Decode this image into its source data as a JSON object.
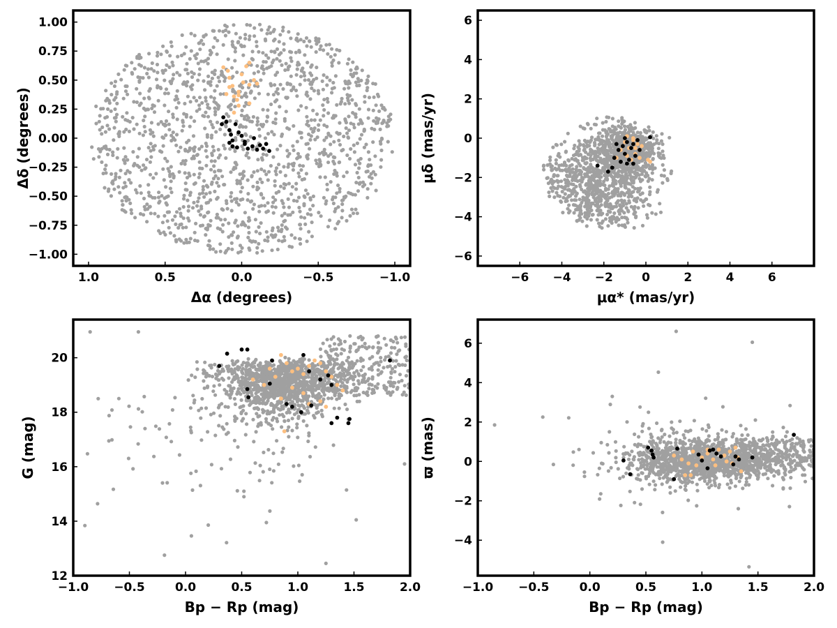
{
  "chart_data": [
    {
      "type": "scatter",
      "xlabel": "Δα (degrees)",
      "ylabel": "Δδ (degrees)",
      "xlim": [
        1.1,
        -1.1
      ],
      "ylim": [
        -1.1,
        1.1
      ],
      "x_ticks": [
        1.0,
        0.5,
        0.0,
        -0.5,
        -1.0
      ],
      "x_tick_labels": [
        "1.0",
        "0.5",
        "0.0",
        "−0.5",
        "−1.0"
      ],
      "y_ticks": [
        1.0,
        0.75,
        0.5,
        0.25,
        0.0,
        -0.25,
        -0.5,
        -0.75,
        -1.0
      ],
      "y_tick_labels": [
        "1.00",
        "0.75",
        "0.50",
        "0.25",
        "0.00",
        "−0.25",
        "−0.50",
        "−0.75",
        "−1.00"
      ],
      "series": [
        {
          "role": "field",
          "color": "#a0a0a0",
          "distribution": "uniform-disk",
          "center": [
            0.0,
            0.0
          ],
          "radius": 1.0,
          "count": 1500
        },
        {
          "role": "members-orange",
          "color": "#fdbf80",
          "points": [
            [
              0.12,
              0.61
            ],
            [
              0.09,
              0.58
            ],
            [
              0.08,
              0.52
            ],
            [
              0.06,
              0.45
            ],
            [
              0.03,
              0.33
            ],
            [
              0.05,
              0.22
            ],
            [
              0.02,
              0.4
            ],
            [
              0.02,
              0.28
            ],
            [
              -0.05,
              0.46
            ],
            [
              -0.08,
              0.5
            ],
            [
              -0.1,
              0.47
            ],
            [
              -0.05,
              0.3
            ],
            [
              0.02,
              0.37
            ],
            [
              0.05,
              0.36
            ],
            [
              0.0,
              0.55
            ],
            [
              -0.05,
              0.65
            ],
            [
              -0.03,
              0.62
            ],
            [
              -0.01,
              0.48
            ],
            [
              0.1,
              0.38
            ],
            [
              0.08,
              0.44
            ]
          ]
        },
        {
          "role": "members-black",
          "color": "#000000",
          "points": [
            [
              0.12,
              0.18
            ],
            [
              0.1,
              0.14
            ],
            [
              0.13,
              0.12
            ],
            [
              0.08,
              0.07
            ],
            [
              0.07,
              0.03
            ],
            [
              0.04,
              0.12
            ],
            [
              0.02,
              0.05
            ],
            [
              0.06,
              -0.02
            ],
            [
              0.08,
              -0.04
            ],
            [
              0.06,
              -0.07
            ],
            [
              0.03,
              -0.08
            ],
            [
              -0.02,
              -0.05
            ],
            [
              -0.04,
              -0.09
            ],
            [
              -0.07,
              -0.07
            ],
            [
              -0.1,
              -0.1
            ],
            [
              -0.14,
              -0.09
            ],
            [
              -0.18,
              -0.11
            ],
            [
              -0.16,
              -0.05
            ],
            [
              -0.08,
              0.0
            ],
            [
              -0.02,
              -0.03
            ],
            [
              0.0,
              0.02
            ],
            [
              -0.12,
              -0.06
            ]
          ]
        }
      ]
    },
    {
      "type": "scatter",
      "xlabel": "μα* (mas/yr)",
      "ylabel": "μδ (mas/yr)",
      "xlim": [
        -8,
        8
      ],
      "ylim": [
        -6.5,
        6.5
      ],
      "x_ticks": [
        -6,
        -4,
        -2,
        0,
        2,
        4,
        6
      ],
      "x_tick_labels": [
        "−6",
        "−4",
        "−2",
        "0",
        "2",
        "4",
        "6"
      ],
      "y_ticks": [
        6,
        4,
        2,
        0,
        -2,
        -4,
        -6
      ],
      "y_tick_labels": [
        "6",
        "4",
        "2",
        "0",
        "−2",
        "−4",
        "−6"
      ],
      "series": [
        {
          "role": "field",
          "color": "#a0a0a0",
          "distribution": "clustered-ellipse",
          "center": [
            -1.5,
            -1.8
          ],
          "extent": [
            3.4,
            2.9
          ],
          "count": 1500
        },
        {
          "role": "members-orange",
          "color": "#fdbf80",
          "points": [
            [
              -1.0,
              -0.2
            ],
            [
              -0.8,
              -0.5
            ],
            [
              -0.6,
              -0.1
            ],
            [
              -0.5,
              -0.8
            ],
            [
              -0.4,
              -0.3
            ],
            [
              -0.3,
              -0.6
            ],
            [
              -1.2,
              -0.6
            ],
            [
              -1.4,
              -1.0
            ],
            [
              -0.9,
              -0.9
            ],
            [
              -0.7,
              -1.1
            ],
            [
              -0.2,
              -0.4
            ],
            [
              0.1,
              -1.1
            ],
            [
              0.2,
              -1.2
            ],
            [
              -0.6,
              0.0
            ],
            [
              -1.1,
              -0.4
            ],
            [
              -0.5,
              -0.5
            ],
            [
              -0.3,
              -1.0
            ],
            [
              -0.9,
              0.1
            ]
          ]
        },
        {
          "role": "members-black",
          "color": "#000000",
          "points": [
            [
              -2.3,
              -1.4
            ],
            [
              -1.8,
              -1.7
            ],
            [
              -1.6,
              -1.5
            ],
            [
              -1.5,
              -1.0
            ],
            [
              -1.3,
              -0.6
            ],
            [
              -1.1,
              -0.4
            ],
            [
              -1.0,
              -0.8
            ],
            [
              -0.9,
              -0.2
            ],
            [
              -0.8,
              -1.1
            ],
            [
              -0.7,
              -0.5
            ],
            [
              -0.6,
              -1.3
            ],
            [
              -0.5,
              -0.9
            ],
            [
              -0.4,
              -0.1
            ],
            [
              -0.3,
              -0.6
            ],
            [
              0.2,
              0.05
            ],
            [
              -1.2,
              -1.2
            ],
            [
              -0.6,
              -0.3
            ],
            [
              -0.9,
              -1.3
            ],
            [
              -1.4,
              -0.3
            ],
            [
              -1.0,
              0.0
            ]
          ]
        }
      ]
    },
    {
      "type": "scatter",
      "xlabel": "Bp − Rp (mag)",
      "ylabel": "G (mag)",
      "xlim": [
        -1.0,
        2.0
      ],
      "ylim": [
        12,
        21.4
      ],
      "x_ticks": [
        -1.0,
        -0.5,
        0.0,
        0.5,
        1.0,
        1.5,
        2.0
      ],
      "x_tick_labels": [
        "−1.0",
        "−0.5",
        "0.0",
        "0.5",
        "1.0",
        "1.5",
        "2.0"
      ],
      "y_ticks": [
        20,
        18,
        16,
        14,
        12
      ],
      "y_tick_labels": [
        "20",
        "18",
        "16",
        "14",
        "12"
      ],
      "series": [
        {
          "role": "field",
          "color": "#a0a0a0",
          "distribution": "color-magnitude-band",
          "count": 1600
        },
        {
          "role": "members-orange",
          "color": "#fdbf80",
          "points": [
            [
              0.85,
              20.1
            ],
            [
              0.9,
              19.8
            ],
            [
              0.95,
              19.5
            ],
            [
              1.0,
              19.6
            ],
            [
              1.05,
              19.4
            ],
            [
              1.1,
              19.7
            ],
            [
              1.15,
              19.9
            ],
            [
              1.2,
              19.8
            ],
            [
              1.25,
              19.5
            ],
            [
              1.3,
              19.3
            ],
            [
              1.35,
              19.0
            ],
            [
              1.4,
              18.8
            ],
            [
              0.8,
              19.3
            ],
            [
              0.7,
              19.0
            ],
            [
              0.6,
              19.2
            ],
            [
              1.2,
              18.4
            ],
            [
              1.25,
              18.2
            ],
            [
              0.85,
              18.5
            ],
            [
              0.95,
              18.9
            ],
            [
              1.05,
              18.7
            ],
            [
              0.88,
              17.3
            ],
            [
              1.1,
              18.3
            ],
            [
              0.75,
              19.6
            ]
          ]
        },
        {
          "role": "members-black",
          "color": "#000000",
          "points": [
            [
              0.3,
              19.7
            ],
            [
              0.37,
              20.15
            ],
            [
              0.5,
              20.3
            ],
            [
              0.55,
              20.3
            ],
            [
              0.55,
              18.85
            ],
            [
              0.56,
              18.55
            ],
            [
              0.75,
              19.05
            ],
            [
              0.77,
              19.9
            ],
            [
              0.9,
              18.3
            ],
            [
              0.95,
              18.2
            ],
            [
              1.03,
              18.0
            ],
            [
              1.05,
              20.1
            ],
            [
              1.1,
              19.5
            ],
            [
              1.12,
              18.25
            ],
            [
              1.2,
              19.2
            ],
            [
              1.27,
              19.35
            ],
            [
              1.3,
              19.0
            ],
            [
              1.3,
              17.6
            ],
            [
              1.35,
              17.8
            ],
            [
              1.45,
              17.6
            ],
            [
              1.46,
              17.75
            ],
            [
              1.82,
              19.9
            ]
          ]
        }
      ]
    },
    {
      "type": "scatter",
      "xlabel": "Bp − Rp (mag)",
      "ylabel": "ϖ (mas)",
      "xlim": [
        -1.0,
        2.0
      ],
      "ylim": [
        -5.8,
        7.2
      ],
      "x_ticks": [
        -1.0,
        -0.5,
        0.0,
        0.5,
        1.0,
        1.5,
        2.0
      ],
      "x_tick_labels": [
        "−1.0",
        "−0.5",
        "0.0",
        "0.5",
        "1.0",
        "1.5",
        "2.0"
      ],
      "y_ticks": [
        6,
        4,
        2,
        0,
        -2,
        -4
      ],
      "y_tick_labels": [
        "6",
        "4",
        "2",
        "0",
        "−2",
        "−4"
      ],
      "series": [
        {
          "role": "field",
          "color": "#a0a0a0",
          "distribution": "parallax-band",
          "count": 1600
        },
        {
          "role": "members-orange",
          "color": "#fdbf80",
          "points": [
            [
              0.75,
              0.3
            ],
            [
              0.82,
              0.1
            ],
            [
              0.88,
              -0.1
            ],
            [
              0.92,
              0.5
            ],
            [
              1.0,
              0.2
            ],
            [
              1.05,
              0.4
            ],
            [
              1.1,
              0.1
            ],
            [
              1.12,
              -0.2
            ],
            [
              1.15,
              0.6
            ],
            [
              1.2,
              0.3
            ],
            [
              1.22,
              0.0
            ],
            [
              1.25,
              0.5
            ],
            [
              1.3,
              0.7
            ],
            [
              1.32,
              0.2
            ],
            [
              1.35,
              -0.5
            ],
            [
              1.05,
              0.6
            ],
            [
              0.95,
              -0.2
            ],
            [
              0.85,
              -0.7
            ],
            [
              0.9,
              -0.7
            ],
            [
              1.27,
              -0.1
            ]
          ]
        },
        {
          "role": "members-black",
          "color": "#000000",
          "points": [
            [
              0.3,
              0.05
            ],
            [
              0.36,
              -0.65
            ],
            [
              0.52,
              0.7
            ],
            [
              0.55,
              0.55
            ],
            [
              0.56,
              0.35
            ],
            [
              0.57,
              0.2
            ],
            [
              0.75,
              -0.9
            ],
            [
              0.78,
              0.65
            ],
            [
              0.97,
              0.35
            ],
            [
              1.0,
              0.05
            ],
            [
              1.07,
              0.55
            ],
            [
              1.1,
              0.6
            ],
            [
              1.13,
              0.4
            ],
            [
              1.05,
              -0.35
            ],
            [
              1.17,
              0.25
            ],
            [
              1.28,
              -0.15
            ],
            [
              1.3,
              0.25
            ],
            [
              1.33,
              0.1
            ],
            [
              1.45,
              0.2
            ],
            [
              1.82,
              1.35
            ]
          ]
        }
      ]
    }
  ]
}
